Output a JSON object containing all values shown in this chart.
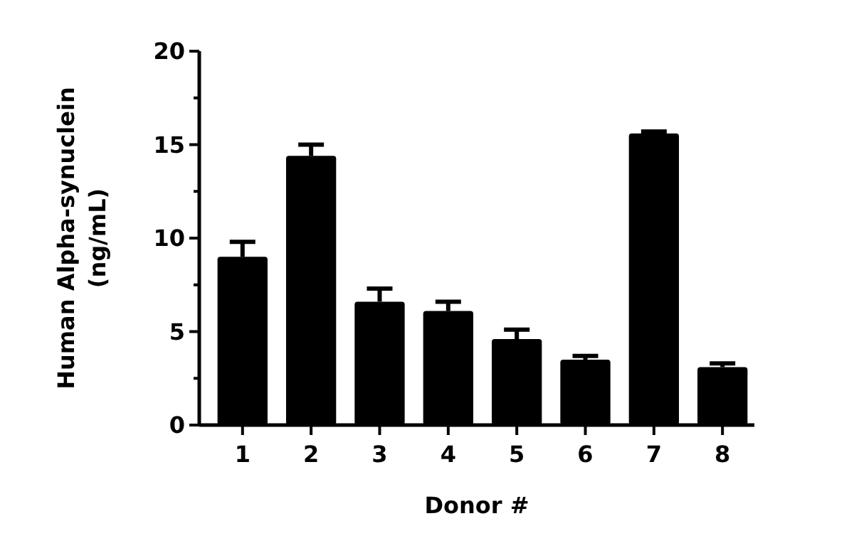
{
  "chart_data": {
    "type": "bar",
    "xlabel": "Donor #",
    "ylabel": "Human Alpha-synuclein\n(ng/mL)",
    "categories": [
      "1",
      "2",
      "3",
      "4",
      "5",
      "6",
      "7",
      "8"
    ],
    "values": [
      9.0,
      14.4,
      6.6,
      6.1,
      4.6,
      3.5,
      15.6,
      3.1
    ],
    "errors": [
      [
        9.0,
        9.8
      ],
      [
        14.4,
        15.0
      ],
      [
        6.6,
        7.3
      ],
      [
        6.1,
        6.6
      ],
      [
        4.6,
        5.1
      ],
      [
        3.5,
        3.7
      ],
      [
        15.6,
        15.7
      ],
      [
        3.1,
        3.3
      ]
    ],
    "color": "#000000",
    "ylim": [
      0,
      20
    ],
    "yticks": [
      0,
      {
        "value": 2.5,
        "label": null
      },
      5,
      {
        "value": 7.5,
        "label": null
      },
      10,
      {
        "value": 12.5,
        "label": null
      },
      15,
      {
        "value": 17.5,
        "label": null
      },
      20
    ],
    "grid": false
  }
}
